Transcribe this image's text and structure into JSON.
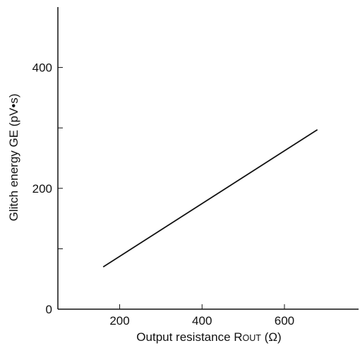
{
  "chart_data": {
    "type": "line",
    "xlabel": "Output resistance R",
    "xlabel_subscript": "OUT",
    "xlabel_unit": "(Ω)",
    "ylabel": "Glitch energy GE (pV•s)",
    "xlim": [
      50,
      780
    ],
    "ylim": [
      0,
      500
    ],
    "x_ticks": [
      200,
      400,
      600
    ],
    "y_ticks": [
      0,
      200,
      400
    ],
    "y_minor_ticks": [
      100,
      300
    ],
    "grid": false,
    "series": [
      {
        "x": [
          160,
          680
        ],
        "y": [
          70,
          297
        ]
      }
    ]
  }
}
